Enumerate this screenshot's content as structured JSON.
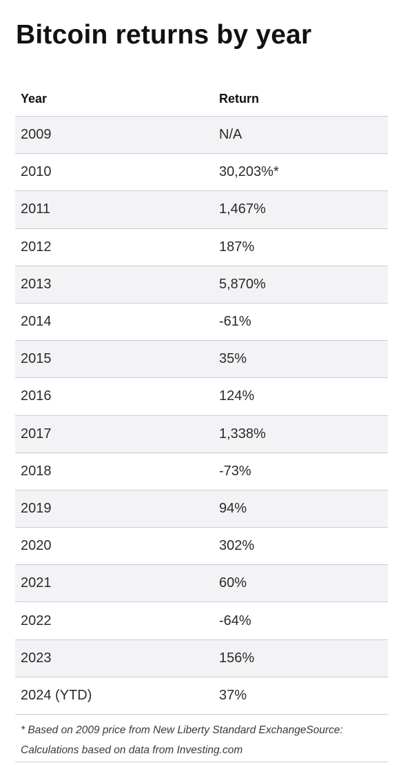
{
  "title": "Bitcoin returns by year",
  "table": {
    "headers": {
      "year": "Year",
      "return": "Return"
    },
    "rows": [
      {
        "year": "2009",
        "return": "N/A"
      },
      {
        "year": "2010",
        "return": "30,203%*"
      },
      {
        "year": "2011",
        "return": "1,467%"
      },
      {
        "year": "2012",
        "return": "187%"
      },
      {
        "year": "2013",
        "return": "5,870%"
      },
      {
        "year": "2014",
        "return": "-61%"
      },
      {
        "year": "2015",
        "return": "35%"
      },
      {
        "year": "2016",
        "return": "124%"
      },
      {
        "year": "2017",
        "return": "1,338%"
      },
      {
        "year": "2018",
        "return": "-73%"
      },
      {
        "year": "2019",
        "return": "94%"
      },
      {
        "year": "2020",
        "return": "302%"
      },
      {
        "year": "2021",
        "return": "60%"
      },
      {
        "year": "2022",
        "return": "-64%"
      },
      {
        "year": "2023",
        "return": "156%"
      },
      {
        "year": "2024 (YTD)",
        "return": "37%"
      }
    ]
  },
  "footnote": "* Based on 2009 price from New Liberty Standard ExchangeSource: Calculations based on data from Investing.com",
  "colors": {
    "alt_row_background": "#f3f3f6",
    "row_divider": "#c9cad8",
    "text": "#2a2a2a"
  }
}
